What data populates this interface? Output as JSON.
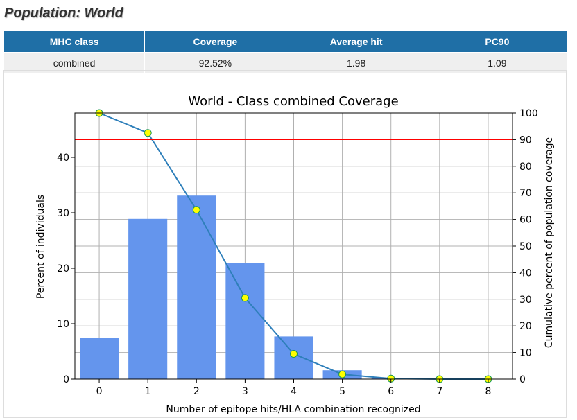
{
  "page": {
    "title": "Population: World"
  },
  "summary_table": {
    "headers": [
      "MHC class",
      "Coverage",
      "Average hit",
      "PC90"
    ],
    "rows": [
      [
        "combined",
        "92.52%",
        "1.98",
        "1.09"
      ]
    ]
  },
  "chart_data": {
    "type": "bar",
    "title": "World - Class combined Coverage",
    "xlabel": "Number of epitope hits/HLA combination recognized",
    "ylabel": "Percent of individuals",
    "y2label": "Cumulative percent of population coverage",
    "categories": [
      "0",
      "1",
      "2",
      "3",
      "4",
      "5",
      "6",
      "7",
      "8"
    ],
    "x": [
      0,
      1,
      2,
      3,
      4,
      5,
      6,
      7,
      8
    ],
    "series": [
      {
        "values": [
          7.5,
          28.9,
          33.1,
          21.0,
          7.7,
          1.6,
          0.2,
          0.0,
          0.0
        ],
        "axis": "left",
        "render": "bar",
        "color": "#6495ed"
      },
      {
        "values": [
          100,
          92.52,
          63.6,
          30.5,
          9.5,
          1.8,
          0.2,
          0.0,
          0.0
        ],
        "axis": "right",
        "render": "line",
        "color": "#2e7fba",
        "marker_color": "#ffff00"
      }
    ],
    "ylim": [
      0,
      48
    ],
    "yticks": [
      0,
      10,
      20,
      30,
      40
    ],
    "y2lim": [
      0,
      100
    ],
    "y2ticks": [
      0,
      10,
      20,
      30,
      40,
      50,
      60,
      70,
      80,
      90,
      100
    ],
    "xlim": [
      -0.5,
      8.5
    ],
    "reference_line": {
      "axis": "right",
      "value": 90,
      "color": "#ff0000"
    },
    "grid": true
  }
}
